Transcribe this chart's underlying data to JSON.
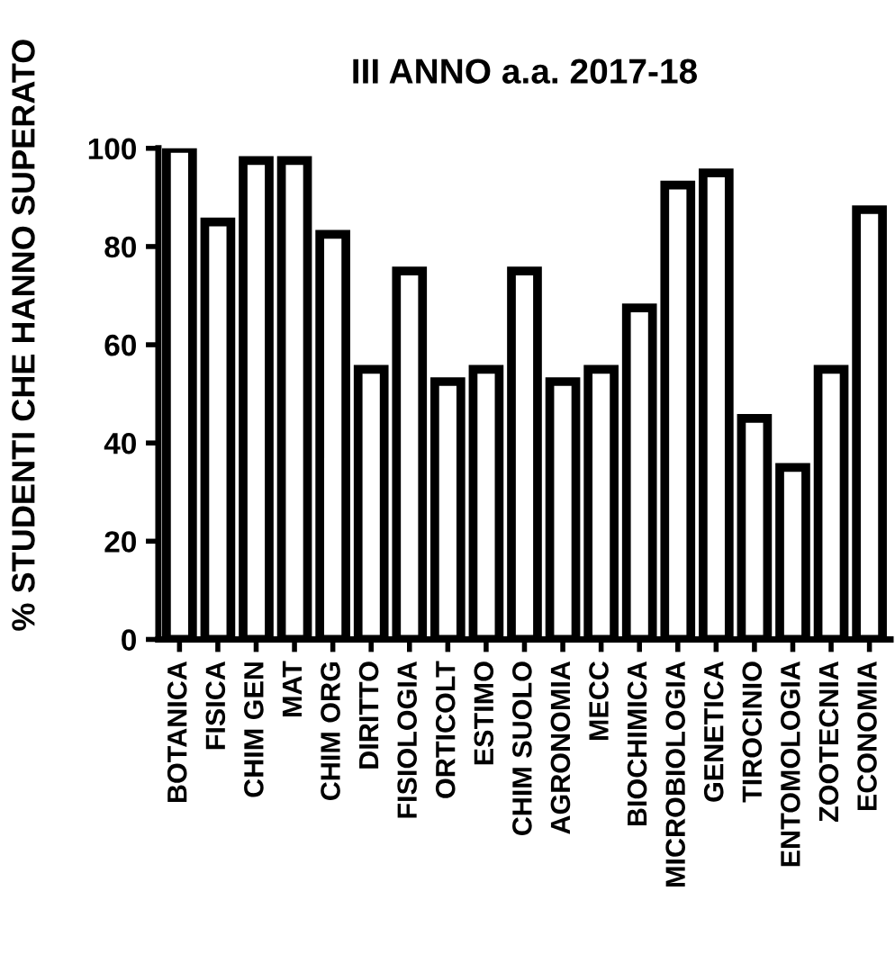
{
  "chart_data": {
    "type": "bar",
    "title": "III ANNO a.a. 2017-18",
    "ylabel": "% STUDENTI CHE HANNO SUPERATO",
    "categories": [
      "BOTANICA",
      "FISICA",
      "CHIM GEN",
      "MAT",
      "CHIM ORG",
      "DIRITTO",
      "FISIOLOGIA",
      "ORTICOLT",
      "ESTIMO",
      "CHIM SUOLO",
      "AGRONOMIA",
      "MECC",
      "BIOCHIMICA",
      "MICROBIOLOGIA",
      "GENETICA",
      "TIROCINIO",
      "ENTOMOLOGIA",
      "ZOOTECNIA",
      "ECONOMIA"
    ],
    "values": [
      100,
      85,
      97.5,
      97.5,
      82.5,
      55,
      75,
      52.5,
      55,
      75,
      52.5,
      55,
      67.5,
      92.5,
      95,
      45,
      35,
      55,
      87.5
    ],
    "color": "#ffffff",
    "ylim": [
      0,
      100
    ],
    "yticks": [
      0,
      20,
      40,
      60,
      80,
      100
    ],
    "grid": false
  }
}
